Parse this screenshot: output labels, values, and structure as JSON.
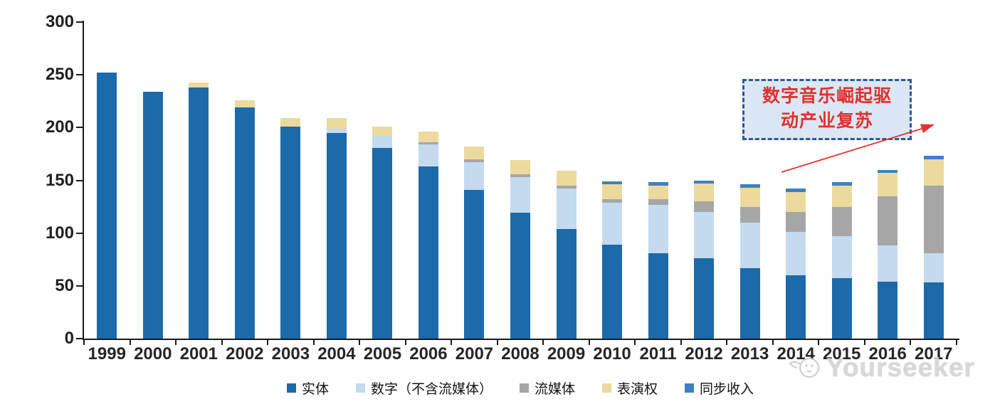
{
  "chart_data": {
    "type": "bar",
    "stacked": true,
    "title": "",
    "xlabel": "",
    "ylabel": "",
    "categories": [
      "1999",
      "2000",
      "2001",
      "2002",
      "2003",
      "2004",
      "2005",
      "2006",
      "2007",
      "2008",
      "2009",
      "2010",
      "2011",
      "2012",
      "2013",
      "2014",
      "2015",
      "2016",
      "2017"
    ],
    "series": [
      {
        "name": "实体",
        "color": "#1c6aa9",
        "values": [
          252,
          234,
          238,
          219,
          201,
          195,
          181,
          163,
          141,
          119,
          104,
          89,
          81,
          76,
          67,
          60,
          57,
          54,
          53
        ]
      },
      {
        "name": "数字（不含流媒体）",
        "color": "#c3daef",
        "values": [
          0,
          0,
          0,
          0,
          0,
          4,
          11,
          21,
          26,
          34,
          38,
          40,
          46,
          44,
          43,
          41,
          40,
          34,
          28
        ]
      },
      {
        "name": "流媒体",
        "color": "#a6a6a6",
        "values": [
          0,
          0,
          0,
          0,
          0,
          0,
          0,
          2,
          3,
          3,
          3,
          3,
          5,
          10,
          15,
          19,
          28,
          47,
          64
        ]
      },
      {
        "name": "表演权",
        "color": "#ebd99e",
        "values": [
          0,
          0,
          5,
          7,
          8,
          10,
          9,
          10,
          12,
          13,
          14,
          14,
          13,
          17,
          18,
          19,
          20,
          22,
          25
        ]
      },
      {
        "name": "同步收入",
        "color": "#3f80c0",
        "values": [
          0,
          0,
          0,
          0,
          0,
          0,
          0,
          0,
          0,
          0,
          0,
          3,
          3,
          3,
          3,
          3,
          3,
          3,
          3
        ]
      }
    ],
    "ylim": [
      0,
      300
    ],
    "yticks": [
      0,
      50,
      100,
      150,
      200,
      250,
      300
    ],
    "grid": false,
    "legend_position": "bottom"
  },
  "annotation": {
    "line1": "数字音乐崛起驱",
    "line2": "动产业复苏",
    "text_color": "#dd3230",
    "border_color": "#2f5597",
    "fill_color": "#dbe7f4",
    "arrow_color": "#e23230"
  },
  "watermark": {
    "text": "Yourseeker"
  }
}
